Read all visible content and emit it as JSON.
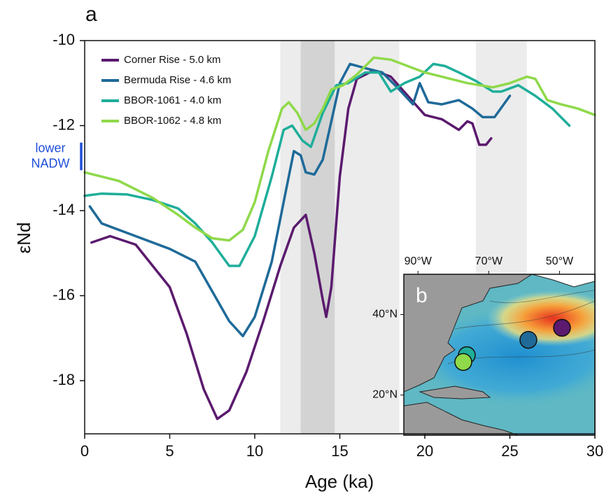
{
  "chart_data": {
    "type": "line",
    "panel_label": "a",
    "x_label": "Age (ka)",
    "y_label": "εNd",
    "xlim": [
      0,
      30
    ],
    "ylim": [
      -19.25,
      -10
    ],
    "xticks": [
      0,
      5,
      10,
      15,
      20,
      25,
      30
    ],
    "yticks": [
      -10,
      -12,
      -14,
      -16,
      -18
    ],
    "legend": "upper left",
    "shaded_intervals": [
      {
        "range": [
          11.5,
          18.5
        ],
        "color": "#ececec"
      },
      {
        "range": [
          12.7,
          14.7
        ],
        "color": "#d3d3d3"
      },
      {
        "range": [
          23,
          26
        ],
        "color": "#ececec"
      }
    ],
    "annotation": {
      "text": [
        "lower",
        "NADW"
      ],
      "range": [
        -12.4,
        -13.05
      ],
      "color": "#1f4fd8"
    },
    "series": [
      {
        "name": "Corner Rise - 5.0 km",
        "color": "#5b1a6e",
        "x": [
          0.4,
          1.5,
          3,
          5,
          6,
          7,
          7.8,
          8.5,
          9.5,
          10.5,
          11.5,
          12.3,
          13,
          13.5,
          14,
          14.2,
          14.5,
          15,
          15.5,
          16,
          17,
          18,
          19,
          20,
          21,
          22,
          22.5,
          22.8,
          23.2,
          23.6,
          23.9
        ],
        "values": [
          -14.75,
          -14.6,
          -14.8,
          -15.8,
          -16.9,
          -18.2,
          -18.9,
          -18.7,
          -17.8,
          -16.6,
          -15.3,
          -14.4,
          -14.1,
          -15.0,
          -16.1,
          -16.5,
          -15.8,
          -13.2,
          -11.6,
          -10.9,
          -10.7,
          -10.85,
          -11.3,
          -11.75,
          -11.85,
          -12.1,
          -11.9,
          -11.95,
          -12.45,
          -12.45,
          -12.3
        ]
      },
      {
        "name": "Bermuda Rise - 4.6 km",
        "color": "#1f6a99",
        "x": [
          0.3,
          1,
          3,
          5,
          6.5,
          7.5,
          8.5,
          9.3,
          10,
          11,
          11.8,
          12.3,
          12.7,
          13,
          13.5,
          14,
          14.5,
          15,
          15.6,
          16.5,
          17.5,
          18.5,
          19.3,
          19.7,
          20.2,
          21,
          22,
          22.8,
          23.4,
          24.1,
          25
        ],
        "values": [
          -13.9,
          -14.3,
          -14.6,
          -14.9,
          -15.2,
          -15.9,
          -16.6,
          -16.95,
          -16.5,
          -15.2,
          -13.6,
          -12.6,
          -12.7,
          -13.1,
          -13.15,
          -12.8,
          -11.9,
          -11.0,
          -10.55,
          -10.65,
          -10.75,
          -11.15,
          -11.5,
          -11.0,
          -11.45,
          -11.5,
          -11.4,
          -11.6,
          -11.8,
          -11.8,
          -11.3
        ]
      },
      {
        "name": "BBOR-1061 - 4.0 km",
        "color": "#1fae9a",
        "x": [
          0,
          1,
          2.5,
          4,
          5.5,
          6.5,
          7.5,
          8.5,
          9.1,
          10,
          11,
          11.7,
          12.2,
          12.8,
          13.3,
          14,
          14.8,
          15.5,
          16.5,
          17.3,
          18,
          18.8,
          19.7,
          20.5,
          21.2,
          22,
          23,
          24,
          24.5,
          25.5,
          26.5,
          27.5,
          28.5
        ],
        "values": [
          -13.65,
          -13.6,
          -13.62,
          -13.75,
          -13.95,
          -14.3,
          -14.75,
          -15.3,
          -15.3,
          -14.6,
          -13.2,
          -12.1,
          -12.0,
          -12.35,
          -12.5,
          -11.7,
          -11.05,
          -11.0,
          -10.75,
          -10.75,
          -11.2,
          -11.0,
          -10.85,
          -10.55,
          -10.6,
          -10.75,
          -10.95,
          -11.2,
          -11.2,
          -11.05,
          -11.3,
          -11.6,
          -12.0
        ]
      },
      {
        "name": "BBOR-1062 - 4.8 km",
        "color": "#8fd94a",
        "x": [
          0,
          2,
          4,
          5.5,
          6.5,
          7.5,
          8.5,
          9.3,
          10,
          10.8,
          11.6,
          12,
          12.5,
          13,
          13.5,
          14,
          14.5,
          15.2,
          16,
          17,
          18,
          19,
          20,
          21,
          22.5,
          24,
          25,
          26,
          26.5,
          27.2,
          28,
          29,
          30
        ],
        "values": [
          -13.1,
          -13.3,
          -13.7,
          -14.1,
          -14.4,
          -14.65,
          -14.7,
          -14.45,
          -13.8,
          -12.6,
          -11.6,
          -11.45,
          -11.7,
          -12.1,
          -11.95,
          -11.6,
          -11.15,
          -11.05,
          -10.8,
          -10.4,
          -10.45,
          -10.6,
          -10.75,
          -10.85,
          -11.0,
          -11.1,
          -11.0,
          -10.85,
          -10.9,
          -11.4,
          -11.5,
          -11.6,
          -11.75
        ]
      }
    ],
    "inset": {
      "panel_label": "b",
      "xlim": [
        -94,
        -40
      ],
      "ylim": [
        10,
        50
      ],
      "xticks": [
        {
          "value": -90,
          "label": "90°W"
        },
        {
          "value": -70,
          "label": "70°W"
        },
        {
          "value": -50,
          "label": "50°W"
        }
      ],
      "yticks": [
        {
          "value": 40,
          "label": "40°N"
        },
        {
          "value": 20,
          "label": "20°N"
        }
      ],
      "sites": [
        {
          "lon": -49.3,
          "lat": 36.7,
          "color": "#5b1a6e"
        },
        {
          "lon": -58.8,
          "lat": 33.7,
          "color": "#1f6a99"
        },
        {
          "lon": -76.2,
          "lat": 29.9,
          "color": "#1fae9a"
        },
        {
          "lon": -77.2,
          "lat": 28.2,
          "color": "#8fd94a"
        }
      ]
    }
  }
}
